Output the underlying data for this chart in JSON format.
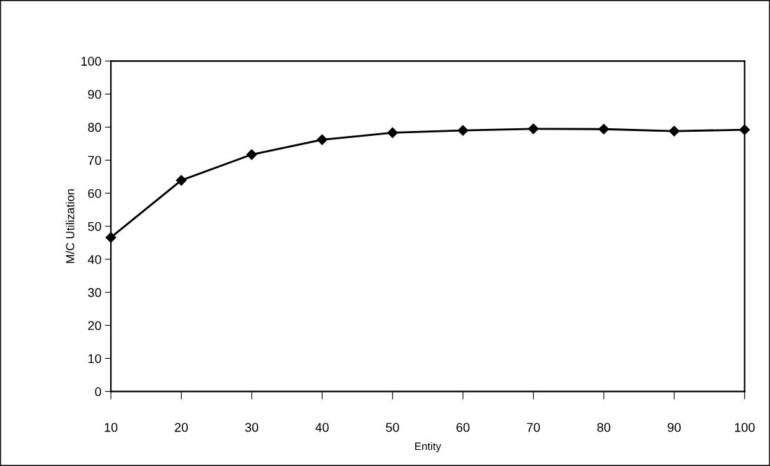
{
  "chart_data": {
    "type": "line",
    "xlabel": "Entity",
    "ylabel": "M/C Utilization",
    "categories": [
      "10",
      "20",
      "30",
      "40",
      "50",
      "60",
      "70",
      "80",
      "90",
      "100"
    ],
    "series": [
      {
        "color": "#000000",
        "values": [
          46.6,
          63.9,
          71.7,
          76.2,
          78.3,
          79.0,
          79.5,
          79.4,
          78.8,
          79.2
        ]
      }
    ],
    "ylim": [
      0,
      100
    ],
    "yticks": [
      0,
      10,
      20,
      30,
      40,
      50,
      60,
      70,
      80,
      90,
      100
    ],
    "marker": "diamond",
    "line_style": "solid",
    "grid": false
  }
}
